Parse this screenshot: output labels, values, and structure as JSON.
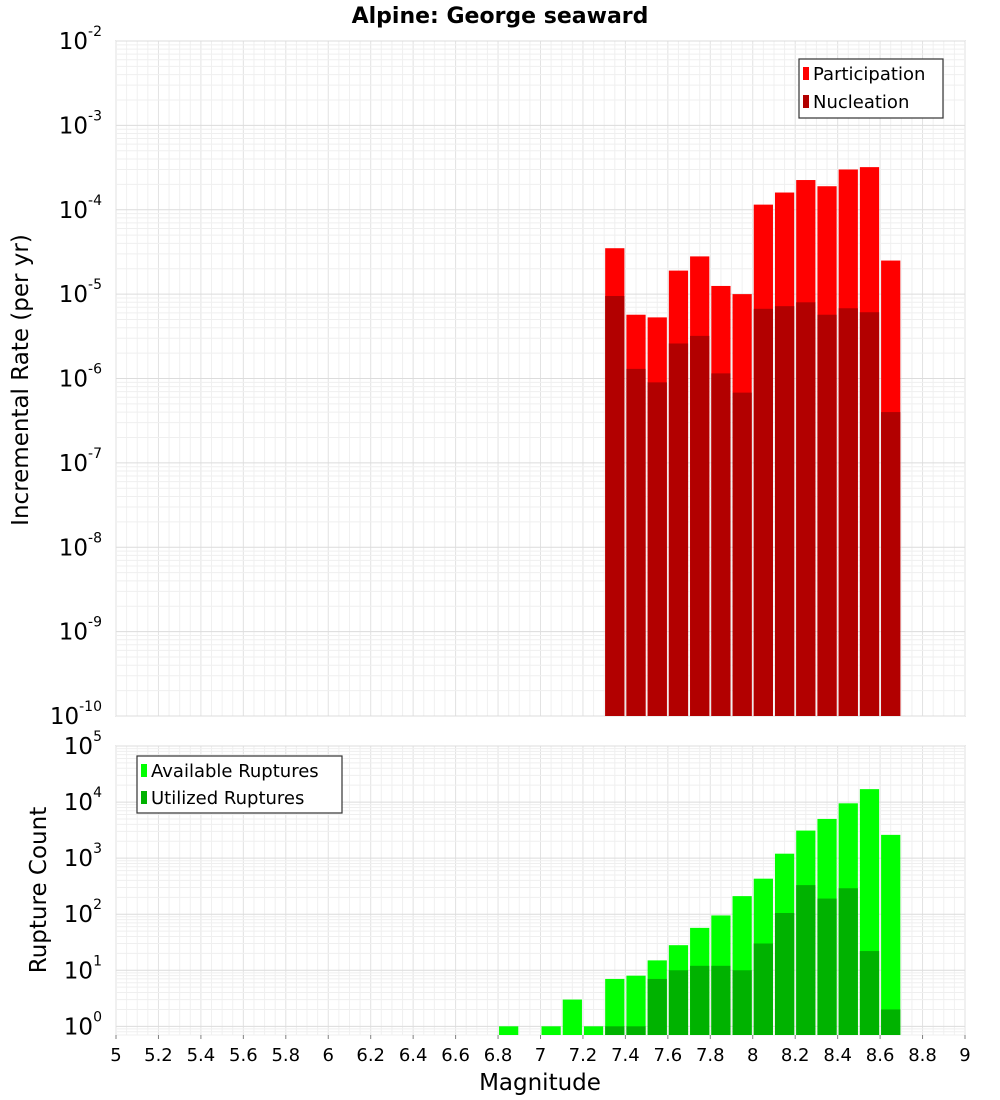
{
  "title": "Alpine: George seaward",
  "xlabel": "Magnitude",
  "chart_data": [
    {
      "type": "bar",
      "ylabel": "Incremental Rate (per yr)",
      "yscale": "log",
      "ylim": [
        1e-10,
        0.01
      ],
      "ytick_labels": [
        {
          "base": "10",
          "exp": "-10"
        },
        {
          "base": "10",
          "exp": "-9"
        },
        {
          "base": "10",
          "exp": "-8"
        },
        {
          "base": "10",
          "exp": "-7"
        },
        {
          "base": "10",
          "exp": "-6"
        },
        {
          "base": "10",
          "exp": "-5"
        },
        {
          "base": "10",
          "exp": "-4"
        },
        {
          "base": "10",
          "exp": "-3"
        },
        {
          "base": "10",
          "exp": "-2"
        }
      ],
      "xlim": [
        5,
        9
      ],
      "grid": true,
      "legend_position": "top-right",
      "x": [
        7.35,
        7.45,
        7.55,
        7.65,
        7.75,
        7.85,
        7.95,
        8.05,
        8.15,
        8.25,
        8.35,
        8.45,
        8.55,
        8.65
      ],
      "series": [
        {
          "name": "Participation",
          "color": "#ff0000",
          "values": [
            3.5e-05,
            5.7e-06,
            5.3e-06,
            1.9e-05,
            2.8e-05,
            1.25e-05,
            1e-05,
            0.000115,
            0.00016,
            0.000225,
            0.00019,
            0.0003,
            0.00032,
            2.5e-05
          ]
        },
        {
          "name": "Nucleation",
          "color": "#b20000",
          "values": [
            9.5e-06,
            1.3e-06,
            9e-07,
            2.6e-06,
            3.2e-06,
            1.15e-06,
            6.8e-07,
            6.7e-06,
            7.2e-06,
            8e-06,
            5.7e-06,
            6.8e-06,
            6.1e-06,
            4e-07
          ]
        }
      ]
    },
    {
      "type": "bar",
      "ylabel": "Rupture Count",
      "yscale": "log",
      "ylim": [
        0.7,
        100000
      ],
      "ytick_labels": [
        {
          "base": "10",
          "exp": "0",
          "value": 1
        },
        {
          "base": "10",
          "exp": "1",
          "value": 10
        },
        {
          "base": "10",
          "exp": "2",
          "value": 100
        },
        {
          "base": "10",
          "exp": "3",
          "value": 1000
        },
        {
          "base": "10",
          "exp": "4",
          "value": 10000
        },
        {
          "base": "10",
          "exp": "5",
          "value": 100000
        }
      ],
      "xlim": [
        5,
        9
      ],
      "xticks": [
        "5",
        "5.2",
        "5.4",
        "5.6",
        "5.8",
        "6",
        "6.2",
        "6.4",
        "6.6",
        "6.8",
        "7",
        "7.2",
        "7.4",
        "7.6",
        "7.8",
        "8",
        "8.2",
        "8.4",
        "8.6",
        "8.8",
        "9"
      ],
      "grid": true,
      "legend_position": "top-left",
      "x": [
        6.85,
        7.05,
        7.15,
        7.25,
        7.35,
        7.45,
        7.55,
        7.65,
        7.75,
        7.85,
        7.95,
        8.05,
        8.15,
        8.25,
        8.35,
        8.45,
        8.55,
        8.65
      ],
      "series": [
        {
          "name": "Available Ruptures",
          "color": "#00ff00",
          "values": [
            1,
            1,
            3,
            1,
            7,
            8,
            15,
            28,
            57,
            95,
            210,
            430,
            1200,
            3100,
            5000,
            9500,
            17000,
            2600
          ]
        },
        {
          "name": "Utilized Ruptures",
          "color": "#00b200",
          "values": [
            0,
            0,
            0,
            0,
            1,
            1,
            7,
            10,
            12,
            12,
            10,
            30,
            105,
            330,
            190,
            290,
            22,
            2
          ]
        }
      ]
    }
  ]
}
